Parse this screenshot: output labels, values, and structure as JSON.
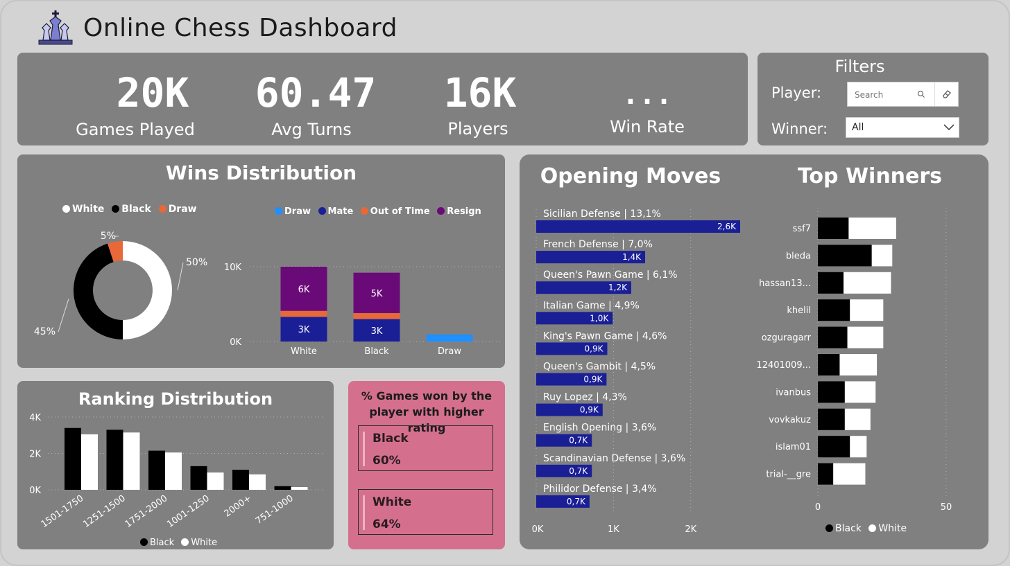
{
  "header": {
    "title": "Online Chess Dashboard",
    "logo_icon": "chess-pieces-icon"
  },
  "kpis": [
    {
      "value": "20K",
      "label": "Games Played"
    },
    {
      "value": "60.47",
      "label": "Avg Turns"
    },
    {
      "value": "16K",
      "label": "Players"
    },
    {
      "value": "...",
      "label": "Win Rate"
    }
  ],
  "filters": {
    "title": "Filters",
    "player_label": "Player:",
    "search_placeholder": "Search",
    "winner_label": "Winner:",
    "winner_value": "All"
  },
  "colors": {
    "panel": "#808080",
    "page": "#d3d3d3",
    "navy": "#1a1f96",
    "purple": "#6a0a78",
    "orange": "#e8683a",
    "blue": "#1e90ff",
    "pink": "#d4708e"
  },
  "wins": {
    "title": "Wins Distribution",
    "donut_legend": [
      "White",
      "Black",
      "Draw"
    ],
    "bar_legend": [
      "Draw",
      "Mate",
      "Out of Time",
      "Resign"
    ]
  },
  "ranking": {
    "title": "Ranking Distribution",
    "legend": [
      "Black",
      "White"
    ]
  },
  "higher_rating": {
    "title": "% Games won by the player with higher rating",
    "black_label": "Black",
    "black_value": "60%",
    "white_label": "White",
    "white_value": "64%"
  },
  "openings": {
    "title": "Opening Moves"
  },
  "top_winners": {
    "title": "Top Winners",
    "legend": [
      "Black",
      "White"
    ]
  },
  "chart_data": [
    {
      "id": "donut",
      "type": "pie",
      "categories": [
        "White",
        "Black",
        "Draw"
      ],
      "values": [
        50,
        45,
        5
      ],
      "data_labels": [
        "50%",
        "45%",
        "5%"
      ],
      "colors": [
        "#ffffff",
        "#000000",
        "#e8683a"
      ]
    },
    {
      "id": "victory",
      "type": "bar",
      "stacked": true,
      "categories": [
        "White",
        "Black",
        "Draw"
      ],
      "series": [
        {
          "name": "Mate",
          "values": [
            3300,
            3000,
            0
          ],
          "labels": [
            "3K",
            "3K",
            ""
          ]
        },
        {
          "name": "Out of Time",
          "values": [
            800,
            800,
            0
          ],
          "labels": [
            "",
            "",
            ""
          ]
        },
        {
          "name": "Resign",
          "values": [
            5900,
            5400,
            0
          ],
          "labels": [
            "6K",
            "5K",
            ""
          ]
        },
        {
          "name": "Draw",
          "values": [
            0,
            0,
            950
          ],
          "labels": [
            "",
            "",
            ""
          ]
        }
      ],
      "yticks": [
        "0K",
        "10K"
      ],
      "ylim": [
        0,
        10000
      ]
    },
    {
      "id": "ranking",
      "type": "bar",
      "categories": [
        "1501-1750",
        "1251-1500",
        "1751-2000",
        "1001-1250",
        "2000+",
        "751-1000"
      ],
      "series": [
        {
          "name": "Black",
          "values": [
            3400,
            3300,
            2150,
            1300,
            1100,
            200
          ]
        },
        {
          "name": "White",
          "values": [
            3050,
            3150,
            2050,
            950,
            850,
            150
          ]
        }
      ],
      "yticks": [
        "0K",
        "2K",
        "4K"
      ],
      "ylim": [
        0,
        4000
      ]
    },
    {
      "id": "openings",
      "type": "bar",
      "orientation": "horizontal",
      "categories": [
        "Sicilian Defense | 13,1%",
        "French Defense | 7,0%",
        "Queen's Pawn Game | 6,1%",
        "Italian Game | 4,9%",
        "King's Pawn Game | 4,6%",
        "Queen's Gambit | 4,5%",
        "Ruy Lopez | 4,3%",
        "English Opening | 3,6%",
        "Scandinavian Defense | 3,6%",
        "Philidor Defense | 3,4%"
      ],
      "values": [
        2640,
        1410,
        1230,
        990,
        920,
        910,
        860,
        720,
        720,
        690
      ],
      "data_labels": [
        "2,6K",
        "1,4K",
        "1,2K",
        "1,0K",
        "0,9K",
        "0,9K",
        "0,9K",
        "0,7K",
        "0,7K",
        "0,7K"
      ],
      "xticks": [
        "0K",
        "1K",
        "2K"
      ],
      "xlim": [
        0,
        2640
      ]
    },
    {
      "id": "winners",
      "type": "bar",
      "orientation": "horizontal",
      "stacked": true,
      "categories": [
        "ssf7",
        "bleda",
        "hassan13...",
        "khelil",
        "ozguragarr",
        "12401009...",
        "ivanbus",
        "vovkakuz",
        "islam01",
        "trial-__gre"
      ],
      "series": [
        {
          "name": "Black",
          "values": [
            12,
            21,
            10,
            12.5,
            11.5,
            8.5,
            10.5,
            10.5,
            12.5,
            6
          ]
        },
        {
          "name": "White",
          "values": [
            18.5,
            8,
            18.5,
            13,
            14,
            14.5,
            12,
            10,
            6.5,
            12.5
          ]
        }
      ],
      "xticks": [
        "0",
        "50"
      ],
      "xlim": [
        0,
        50
      ]
    }
  ]
}
